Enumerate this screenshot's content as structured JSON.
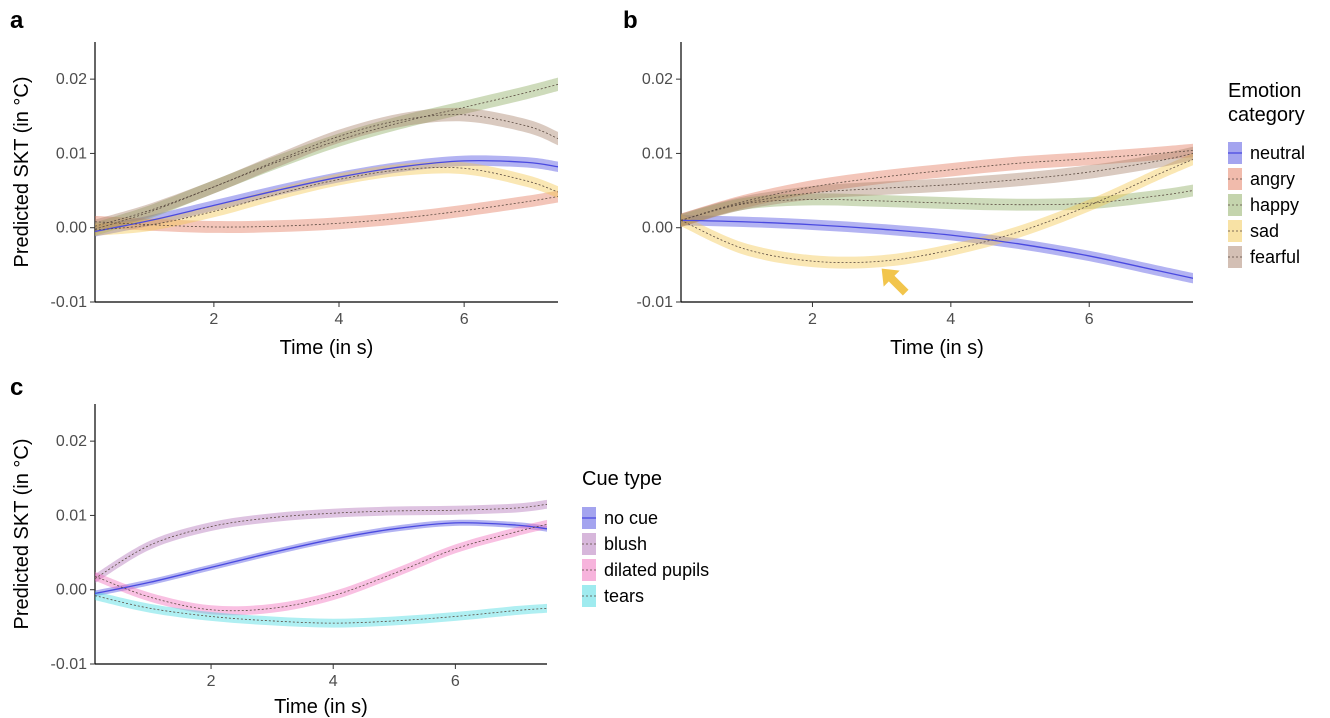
{
  "chart_data": [
    {
      "panel": "a",
      "type": "line",
      "xlabel": "Time (in s)",
      "ylabel": "Predicted SKT (in °C)",
      "xlim": [
        0.1,
        7.5
      ],
      "ylim": [
        -0.01,
        0.025
      ],
      "xticks": [
        "2",
        "4",
        "6"
      ],
      "yticks": [
        "-0.01",
        "0.00",
        "0.01",
        "0.02"
      ],
      "grid": false,
      "x": [
        0.1,
        1.0,
        2.0,
        3.0,
        4.0,
        5.0,
        6.0,
        7.0,
        7.5
      ],
      "series": [
        {
          "name": "neutral",
          "color": "#4a4ae0",
          "dashed": false,
          "band": 0.0007,
          "values": [
            -0.0005,
            0.001,
            0.003,
            0.005,
            0.0068,
            0.0082,
            0.009,
            0.0088,
            0.0082
          ]
        },
        {
          "name": "angry",
          "color": "#e3785a",
          "dashed": true,
          "band": 0.0008,
          "values": [
            0.0008,
            0.0004,
            0.0001,
            0.0002,
            0.0006,
            0.0013,
            0.0023,
            0.0035,
            0.0042
          ]
        },
        {
          "name": "happy",
          "color": "#8aaa5c",
          "dashed": true,
          "band": 0.0009,
          "values": [
            -0.0002,
            0.0022,
            0.0055,
            0.0088,
            0.0118,
            0.0142,
            0.0162,
            0.0182,
            0.0193
          ]
        },
        {
          "name": "sad",
          "color": "#f2c54c",
          "dashed": true,
          "band": 0.0008,
          "values": [
            -0.0003,
            0.0004,
            0.0022,
            0.0045,
            0.0065,
            0.0078,
            0.008,
            0.0063,
            0.0048
          ]
        },
        {
          "name": "fearful",
          "color": "#a8806a",
          "dashed": true,
          "band": 0.0009,
          "values": [
            0.0002,
            0.0024,
            0.0055,
            0.009,
            0.0123,
            0.0145,
            0.0152,
            0.0137,
            0.012
          ]
        }
      ]
    },
    {
      "panel": "b",
      "type": "line",
      "xlabel": "Time (in s)",
      "ylabel": "",
      "xlim": [
        0.1,
        7.5
      ],
      "ylim": [
        -0.01,
        0.025
      ],
      "xticks": [
        "2",
        "4",
        "6"
      ],
      "yticks": [
        "-0.01",
        "0.00",
        "0.01",
        "0.02"
      ],
      "grid": false,
      "x": [
        0.1,
        1.0,
        2.0,
        3.0,
        4.0,
        5.0,
        6.0,
        7.0,
        7.5
      ],
      "series": [
        {
          "name": "neutral",
          "color": "#4a4ae0",
          "dashed": false,
          "band": 0.0007,
          "values": [
            0.001,
            0.0008,
            0.0004,
            -0.0002,
            -0.001,
            -0.0022,
            -0.0038,
            -0.0058,
            -0.0068
          ]
        },
        {
          "name": "angry",
          "color": "#e3785a",
          "dashed": true,
          "band": 0.0009,
          "values": [
            0.001,
            0.0035,
            0.0055,
            0.0068,
            0.0078,
            0.0087,
            0.0093,
            0.01,
            0.0104
          ]
        },
        {
          "name": "happy",
          "color": "#8aaa5c",
          "dashed": true,
          "band": 0.0008,
          "values": [
            0.001,
            0.0032,
            0.0038,
            0.0036,
            0.0033,
            0.0031,
            0.0033,
            0.0043,
            0.005
          ]
        },
        {
          "name": "sad",
          "color": "#f2c54c",
          "dashed": true,
          "band": 0.0008,
          "values": [
            0.001,
            -0.0028,
            -0.0045,
            -0.0045,
            -0.003,
            -0.0005,
            0.003,
            0.0072,
            0.0092
          ]
        },
        {
          "name": "fearful",
          "color": "#a8806a",
          "dashed": true,
          "band": 0.0009,
          "values": [
            0.001,
            0.0033,
            0.0047,
            0.0053,
            0.0058,
            0.0065,
            0.0075,
            0.009,
            0.01
          ]
        }
      ],
      "annotation": {
        "type": "arrow",
        "color": "#f2c54c",
        "points_to": {
          "x": 3.0,
          "y": -0.0055
        }
      }
    },
    {
      "panel": "c",
      "type": "line",
      "xlabel": "Time (in s)",
      "ylabel": "Predicted SKT (in °C)",
      "xlim": [
        0.1,
        7.5
      ],
      "ylim": [
        -0.01,
        0.025
      ],
      "xticks": [
        "2",
        "4",
        "6"
      ],
      "yticks": [
        "-0.01",
        "0.00",
        "0.01",
        "0.02"
      ],
      "grid": false,
      "x": [
        0.1,
        1.0,
        2.0,
        3.0,
        4.0,
        5.0,
        6.0,
        7.0,
        7.5
      ],
      "series": [
        {
          "name": "no cue",
          "color": "#4a4ae0",
          "dashed": false,
          "band": 0.0004,
          "values": [
            -0.0005,
            0.001,
            0.003,
            0.005,
            0.0068,
            0.0082,
            0.009,
            0.0087,
            0.0082
          ]
        },
        {
          "name": "blush",
          "color": "#b070b8",
          "dashed": true,
          "band": 0.0006,
          "values": [
            0.0015,
            0.006,
            0.0085,
            0.0097,
            0.0103,
            0.0106,
            0.0107,
            0.011,
            0.0115
          ]
        },
        {
          "name": "dilated pupils",
          "color": "#f06aba",
          "dashed": true,
          "band": 0.0006,
          "values": [
            0.0018,
            -0.001,
            -0.0027,
            -0.0025,
            -0.0008,
            0.0022,
            0.0055,
            0.0078,
            0.0088
          ]
        },
        {
          "name": "tears",
          "color": "#40d8e0",
          "dashed": true,
          "band": 0.0006,
          "values": [
            -0.0008,
            -0.0025,
            -0.0036,
            -0.0042,
            -0.0045,
            -0.0042,
            -0.0036,
            -0.0028,
            -0.0025
          ]
        }
      ]
    }
  ],
  "legends": [
    {
      "title_lines": [
        "Emotion",
        "category"
      ],
      "items": [
        "neutral",
        "angry",
        "happy",
        "sad",
        "fearful"
      ]
    },
    {
      "title_lines": [
        "Cue type"
      ],
      "items": [
        "no cue",
        "blush",
        "dilated pupils",
        "tears"
      ]
    }
  ]
}
